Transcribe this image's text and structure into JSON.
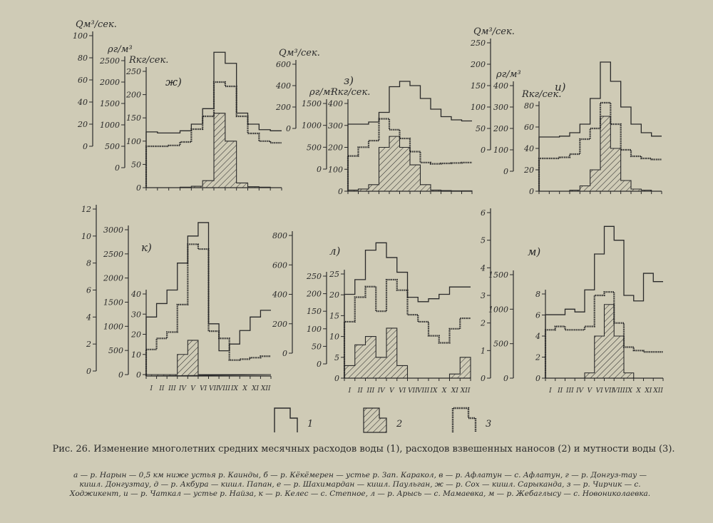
{
  "caption": {
    "title": "Рис. 26. Изменение многолетних средних месячных расходов воды (1), расходов взвешенных наносов (2) и мутности воды (3).",
    "legend": "а — р. Нарын — 0,5 км ниже устья р. Каинды, б — р. Кёкёмерен — устье р. Зап. Каракол, в — р. Афлатун — с. Афлатун, г — р. Донгуз-тау — кишл. Донгузтау, д — р. Акбура — кишл. Папан, е — р. Шахимардан — кишл. Паульган, ж — р. Сох — кишл. Сарыканда, з — р. Чирчик — с. Ходжикент, и — р. Чаткал — устье р. Найза, к — р. Келес — с. Степное, л — р. Арысь — с. Мамаевка, м — р. Жебаглысу — с. Новониколаевка."
  },
  "legend_items": [
    {
      "num": "1",
      "style": "step-line"
    },
    {
      "num": "2",
      "style": "hatched"
    },
    {
      "num": "3",
      "style": "dotted-step"
    }
  ],
  "months": [
    "I",
    "II",
    "III",
    "IV",
    "V",
    "VI",
    "VII",
    "VIII",
    "IX",
    "X",
    "XI",
    "XII"
  ],
  "colors": {
    "ink": "#2a2a2a",
    "paper": "#cfcbb6"
  },
  "chart_data": [
    {
      "panel": "ж)",
      "type": "step",
      "axes": [
        {
          "label": "Qм³/сек.",
          "ticks": [
            "0",
            "20",
            "40",
            "60",
            "80",
            "100"
          ],
          "range": [
            0,
            100
          ]
        },
        {
          "label": "ρг/м³",
          "ticks": [
            "0",
            "500",
            "1000",
            "1500",
            "2000",
            "2500"
          ],
          "range": [
            0,
            2500
          ]
        },
        {
          "label": "Rкг/сек.",
          "ticks": [
            "0",
            "50",
            "100",
            "150",
            "200",
            "250"
          ],
          "range": [
            0,
            250
          ]
        }
      ],
      "series": [
        {
          "legend": "1",
          "axis": 0,
          "values": [
            13,
            12,
            12,
            14,
            20,
            34,
            85,
            75,
            30,
            20,
            15,
            14
          ]
        },
        {
          "legend": "3",
          "axis": 1,
          "values": [
            500,
            500,
            520,
            600,
            900,
            1200,
            2000,
            1900,
            1200,
            800,
            620,
            580
          ]
        },
        {
          "legend": "2",
          "axis": 2,
          "values": [
            0,
            0,
            0,
            1,
            3,
            15,
            160,
            100,
            10,
            2,
            1,
            0
          ]
        }
      ]
    },
    {
      "panel": "з)",
      "type": "step",
      "axes": [
        {
          "label": "Qм³/сек.",
          "ticks": [
            "0",
            "200",
            "400",
            "600"
          ],
          "range": [
            0,
            600
          ]
        },
        {
          "label": "ρг/м³",
          "ticks": [
            "0",
            "500",
            "1000",
            "1500"
          ],
          "range": [
            0,
            1500
          ]
        },
        {
          "label": "Rкг/сек.",
          "ticks": [
            "0",
            "100",
            "200",
            "300",
            "400"
          ],
          "range": [
            0,
            400
          ]
        }
      ],
      "series": [
        {
          "legend": "1",
          "axis": 0,
          "values": [
            40,
            40,
            60,
            150,
            390,
            440,
            400,
            280,
            180,
            110,
            80,
            70
          ]
        },
        {
          "legend": "3",
          "axis": 1,
          "values": [
            300,
            500,
            650,
            1150,
            900,
            700,
            400,
            150,
            120,
            130,
            140,
            150
          ]
        },
        {
          "legend": "2",
          "axis": 2,
          "values": [
            5,
            10,
            30,
            200,
            250,
            200,
            120,
            30,
            5,
            3,
            2,
            2
          ]
        }
      ]
    },
    {
      "panel": "и)",
      "type": "step",
      "axes": [
        {
          "label": "Qм³/сек.",
          "ticks": [
            "0",
            "50",
            "100",
            "150",
            "200",
            "250"
          ],
          "range": [
            0,
            250
          ]
        },
        {
          "label": "ρг/м³",
          "ticks": [
            "0",
            "100",
            "200",
            "300",
            "400"
          ],
          "range": [
            0,
            400
          ]
        },
        {
          "label": "Rкг/сек.",
          "ticks": [
            "0",
            "20",
            "40",
            "60",
            "80"
          ],
          "range": [
            0,
            80
          ]
        }
      ],
      "series": [
        {
          "legend": "1",
          "axis": 0,
          "values": [
            30,
            30,
            32,
            40,
            60,
            120,
            205,
            160,
            100,
            60,
            40,
            32
          ]
        },
        {
          "legend": "3",
          "axis": 1,
          "values": [
            60,
            60,
            65,
            80,
            150,
            200,
            320,
            220,
            100,
            70,
            60,
            55
          ]
        },
        {
          "legend": "2",
          "axis": 2,
          "values": [
            0,
            0,
            0,
            1,
            5,
            20,
            70,
            40,
            10,
            2,
            1,
            0
          ]
        }
      ]
    },
    {
      "panel": "к)",
      "type": "step",
      "axes": [
        {
          "label": "",
          "ticks": [
            "0",
            "2",
            "4",
            "6",
            "8",
            "10",
            "12"
          ],
          "range": [
            0,
            12
          ]
        },
        {
          "label": "",
          "ticks": [
            "0",
            "500",
            "1000",
            "1500",
            "2000",
            "2500",
            "3000"
          ],
          "range": [
            0,
            3000
          ]
        },
        {
          "label": "",
          "ticks": [
            "0",
            "10",
            "20",
            "30",
            "40"
          ],
          "range": [
            0,
            40
          ]
        }
      ],
      "series": [
        {
          "legend": "1",
          "axis": 0,
          "values": [
            4,
            5,
            6,
            8,
            10,
            11,
            3.5,
            1.5,
            2,
            3,
            4,
            4.5
          ]
        },
        {
          "legend": "3",
          "axis": 1,
          "values": [
            520,
            750,
            880,
            1450,
            2700,
            2600,
            900,
            750,
            300,
            320,
            350,
            380
          ]
        },
        {
          "legend": "2",
          "axis": 2,
          "values": [
            0,
            0,
            0,
            10,
            17,
            0,
            0,
            0,
            0,
            0,
            0,
            0
          ]
        }
      ]
    },
    {
      "panel": "л)",
      "type": "step",
      "axes": [
        {
          "label": "",
          "ticks": [
            "0",
            "200",
            "400",
            "600",
            "800"
          ],
          "range": [
            0,
            800
          ]
        },
        {
          "label": "",
          "ticks": [
            "0",
            "50",
            "100",
            "150",
            "200",
            "250"
          ],
          "range": [
            0,
            250
          ]
        },
        {
          "label": "",
          "ticks": [
            "0",
            "5",
            "10",
            "15",
            "20",
            "25"
          ],
          "range": [
            0,
            25
          ]
        }
      ],
      "series": [
        {
          "legend": "1",
          "axis": 0,
          "values": [
            400,
            500,
            700,
            750,
            650,
            550,
            380,
            350,
            370,
            400,
            450,
            450
          ]
        },
        {
          "legend": "3",
          "axis": 1,
          "values": [
            120,
            190,
            220,
            150,
            240,
            210,
            140,
            120,
            80,
            60,
            100,
            130
          ]
        },
        {
          "legend": "2",
          "axis": 2,
          "values": [
            3,
            8,
            10,
            5,
            12,
            3,
            0,
            0,
            0,
            0,
            1,
            5
          ]
        }
      ]
    },
    {
      "panel": "м)",
      "type": "step",
      "axes": [
        {
          "label": "",
          "ticks": [
            "0",
            "1",
            "2",
            "3",
            "4",
            "5",
            "6"
          ],
          "range": [
            0,
            6
          ]
        },
        {
          "label": "",
          "ticks": [
            "0",
            "500",
            "1000",
            "1500"
          ],
          "range": [
            0,
            1500
          ]
        },
        {
          "label": "",
          "ticks": [
            "0",
            "2",
            "4",
            "6",
            "8"
          ],
          "range": [
            0,
            8
          ]
        }
      ],
      "series": [
        {
          "legend": "1",
          "axis": 0,
          "values": [
            2.3,
            2.3,
            2.5,
            2.4,
            3.2,
            4.5,
            5.5,
            5,
            3,
            2.8,
            3.8,
            3.5
          ]
        },
        {
          "legend": "3",
          "axis": 1,
          "values": [
            700,
            750,
            700,
            700,
            750,
            1200,
            1250,
            800,
            450,
            400,
            380,
            380
          ]
        },
        {
          "legend": "2",
          "axis": 2,
          "values": [
            0,
            0,
            0,
            0,
            0.5,
            4,
            7,
            4,
            0.5,
            0,
            0,
            0
          ]
        }
      ]
    }
  ]
}
